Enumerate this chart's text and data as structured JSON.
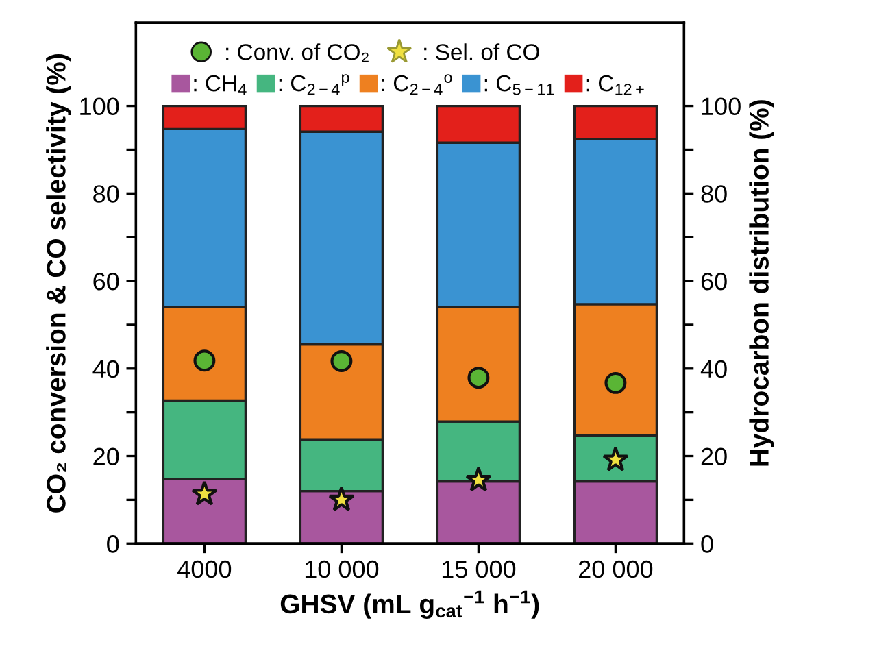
{
  "chart_data": {
    "type": "bar",
    "stacked": true,
    "xlabel": "GHSV (mL g$_{cat}$$^{−1}$ h$^{−1}$)",
    "ylabel": "CO₂ conversion & CO selectivity (%)",
    "y2label": "Hydrocarbon distribution (%)",
    "categories": [
      "4000",
      "10 000",
      "15 000",
      "20 000"
    ],
    "series": [
      {
        "name": ": CH$_{4}$",
        "color": "#a8579e",
        "axis": "y2",
        "values": [
          14.8,
          12.0,
          14.2,
          14.2
        ]
      },
      {
        "name": ": C$_{2−4}$$^{p}$",
        "color": "#45b680",
        "axis": "y2",
        "values": [
          17.9,
          11.8,
          13.7,
          10.5
        ]
      },
      {
        "name": ": C$_{2−4}$$^{o}$",
        "color": "#ee8020",
        "axis": "y2",
        "values": [
          21.3,
          21.7,
          26.1,
          30.0
        ]
      },
      {
        "name": ": C$_{5−11}$",
        "color": "#3a93d2",
        "axis": "y2",
        "values": [
          40.7,
          48.6,
          37.6,
          37.7
        ]
      },
      {
        "name": ": C$_{12+}$",
        "color": "#e3201b",
        "axis": "y2",
        "values": [
          5.3,
          5.9,
          8.4,
          7.6
        ]
      },
      {
        "name": ": Conv. of CO₂",
        "type": "scatter",
        "marker": "circle",
        "color": "#5ab535",
        "values": [
          41.8,
          41.7,
          37.9,
          36.7
        ]
      },
      {
        "name": ": Sel. of CO",
        "type": "scatter",
        "marker": "star",
        "color": "#f0e040",
        "values": [
          11.3,
          10.0,
          14.5,
          19.1
        ]
      }
    ],
    "ylim": [
      0,
      119
    ],
    "yticks": [
      0,
      {
        "value": 10,
        "label": null
      },
      20,
      {
        "value": 30,
        "label": null
      },
      40,
      {
        "value": 50,
        "label": null
      },
      60,
      {
        "value": 70,
        "label": null
      },
      80,
      {
        "value": 90,
        "label": null
      },
      100
    ],
    "y2lim": [
      0,
      119
    ],
    "y2ticks": [
      0,
      {
        "value": 10,
        "label": null
      },
      20,
      {
        "value": 30,
        "label": null
      },
      40,
      {
        "value": 50,
        "label": null
      },
      60,
      {
        "value": 70,
        "label": null
      },
      80,
      {
        "value": 90,
        "label": null
      },
      100
    ],
    "grid": false,
    "legend": "top"
  }
}
